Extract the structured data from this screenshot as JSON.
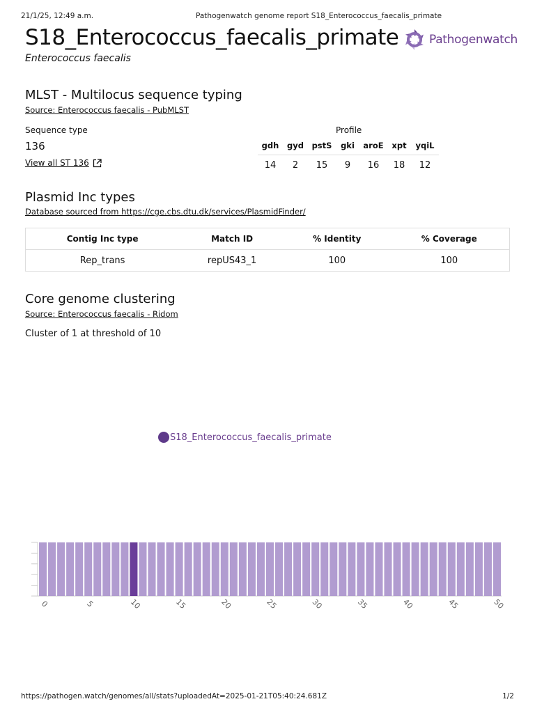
{
  "print_header": {
    "datetime": "21/1/25, 12:49 a.m.",
    "doc_title": "Pathogenwatch genome report S18_Enterococcus_faecalis_primate"
  },
  "report": {
    "title": "S18_Enterococcus_faecalis_primate",
    "species": "Enterococcus faecalis"
  },
  "logo": {
    "text_a": "Pathogen",
    "text_b": "watch",
    "icon": "pathogenwatch-gear-icon"
  },
  "mlst": {
    "heading": "MLST - Multilocus sequence typing",
    "source": "Source: Enterococcus faecalis - PubMLST",
    "sequence_type_label": "Sequence type",
    "sequence_type_value": "136",
    "view_all_link": "View all ST 136",
    "profile_label": "Profile",
    "loci": [
      "gdh",
      "gyd",
      "pstS",
      "gki",
      "aroE",
      "xpt",
      "yqiL"
    ],
    "alleles": [
      "14",
      "2",
      "15",
      "9",
      "16",
      "18",
      "12"
    ]
  },
  "plasmid": {
    "heading": "Plasmid Inc types",
    "source": "Database sourced from https://cge.cbs.dtu.dk/services/PlasmidFinder/",
    "columns": [
      "Contig Inc type",
      "Match ID",
      "% Identity",
      "% Coverage"
    ],
    "rows": [
      [
        "Rep_trans",
        "repUS43_1",
        "100",
        "100"
      ]
    ]
  },
  "clustering": {
    "heading": "Core genome clustering",
    "source": "Source: Enterococcus faecalis - Ridom",
    "summary": "Cluster of 1 at threshold of 10",
    "node_label": "S18_Enterococcus_faecalis_primate",
    "node_color": "#5e3a8a"
  },
  "chart_data": {
    "type": "bar",
    "x": [
      0,
      1,
      2,
      3,
      4,
      5,
      6,
      7,
      8,
      9,
      10,
      11,
      12,
      13,
      14,
      15,
      16,
      17,
      18,
      19,
      20,
      21,
      22,
      23,
      24,
      25,
      26,
      27,
      28,
      29,
      30,
      31,
      32,
      33,
      34,
      35,
      36,
      37,
      38,
      39,
      40,
      41,
      42,
      43,
      44,
      45,
      46,
      47,
      48,
      49,
      50
    ],
    "tick_labels": [
      "0",
      "5",
      "10",
      "15",
      "20",
      "25",
      "30",
      "35",
      "40",
      "45",
      "50"
    ],
    "highlight_x": 10,
    "bar_color": "#b19cd0",
    "highlight_color": "#6a3d99",
    "xlim": [
      0,
      50
    ]
  },
  "print_footer": {
    "url": "https://pathogen.watch/genomes/all/stats?uploadedAt=2025-01-21T05:40:24.681Z",
    "page": "1/2"
  }
}
